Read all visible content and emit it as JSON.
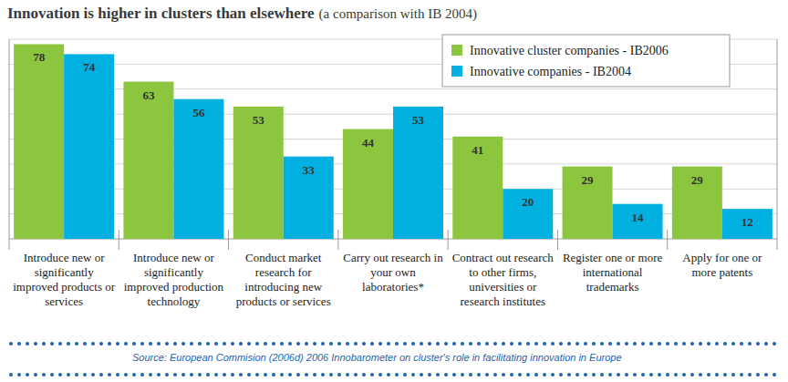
{
  "chart_data": {
    "type": "bar",
    "title": "Innovation is higher in clusters than elsewhere",
    "subtitle": "(a comparison with IB 2004)",
    "categories": [
      "Introduce new or significantly improved products or services",
      "Introduce new or significantly improved production technology",
      "Conduct market research for introducing new products or services",
      "Carry out research in your own laboratories*",
      "Contract out research to other firms, universities or research institutes",
      "Register one or more international trademarks",
      "Apply for one or more patents"
    ],
    "series": [
      {
        "name": "Innovative cluster companies - IB2006",
        "color": "#8cc63e",
        "values": [
          78,
          63,
          53,
          44,
          41,
          29,
          29
        ]
      },
      {
        "name": "Innovative companies - IB2004",
        "color": "#00b0e0",
        "values": [
          74,
          56,
          33,
          53,
          20,
          14,
          12
        ]
      }
    ],
    "ylim": [
      0,
      80
    ],
    "yticks": [
      0,
      10,
      20,
      30,
      40,
      50,
      60,
      70,
      80
    ],
    "grid": true,
    "tick_labels": "x",
    "data_labels": true,
    "legend": "upper right",
    "source": "Source: European Commision (2006d) 2006 Innobarometer on cluster's role in facilitating innovation in Europe"
  }
}
